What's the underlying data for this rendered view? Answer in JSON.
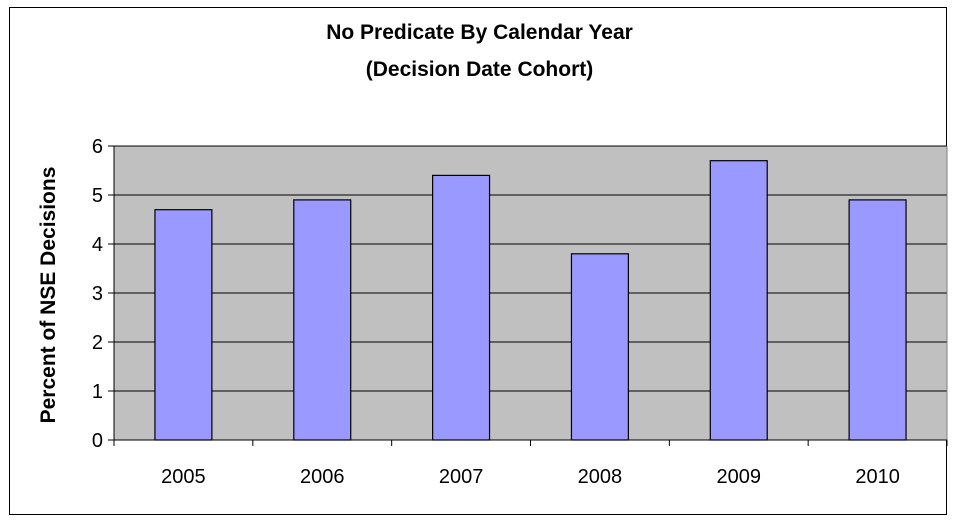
{
  "chart_data": {
    "type": "bar",
    "title": "No Predicate By Calendar Year",
    "subtitle": "(Decision Date Cohort)",
    "xlabel": "",
    "ylabel": "Percent of NSE Decisions",
    "categories": [
      "2005",
      "2006",
      "2007",
      "2008",
      "2009",
      "2010"
    ],
    "values": [
      4.7,
      4.9,
      5.4,
      3.8,
      5.7,
      4.9
    ],
    "ylim": [
      0,
      6
    ],
    "yticks": [
      "0",
      "1",
      "2",
      "3",
      "4",
      "5",
      "6"
    ],
    "grid": true,
    "legend": "none",
    "colors": {
      "bar_fill": "#9999ff",
      "plot_background": "#c0c0c0",
      "gridline": "#000000"
    }
  }
}
